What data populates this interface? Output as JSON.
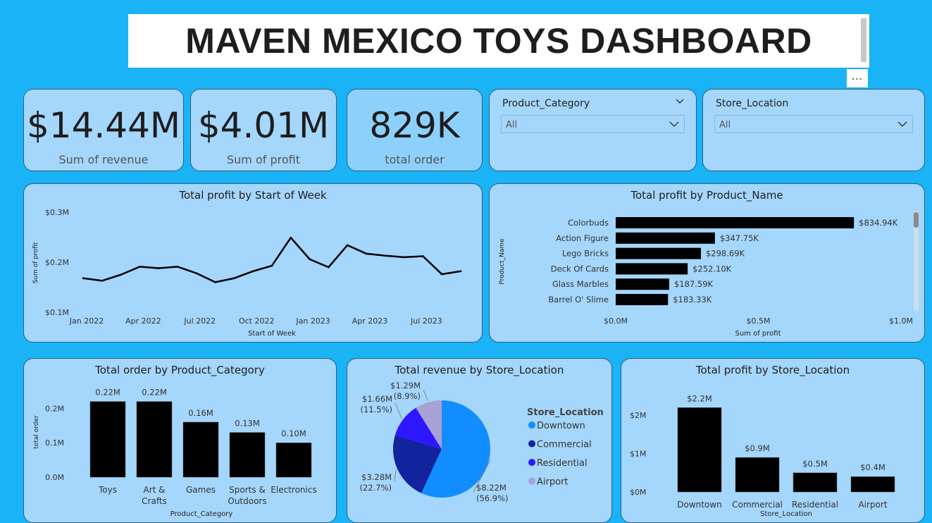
{
  "header": {
    "title": "MAVEN MEXICO TOYS DASHBOARD",
    "more_label": "⋯"
  },
  "kpis": [
    {
      "value": "$14.44M",
      "label": "Sum of revenue"
    },
    {
      "value": "$4.01M",
      "label": "Sum of profit"
    },
    {
      "value": "829K",
      "label": "total order"
    }
  ],
  "slicers": [
    {
      "title": "Product_Category",
      "value": "All"
    },
    {
      "title": "Store_Location",
      "value": "All"
    }
  ],
  "colors": {
    "page_bg": "#1ab3f5",
    "card_bg": "#a5d6fb",
    "bar": "#000000",
    "downtown": "#118dff",
    "commercial": "#12239e",
    "residential": "#2e16ff",
    "airport": "#a7a1d6"
  },
  "chart_data": [
    {
      "type": "line",
      "title": "Total profit by Start of Week",
      "xlabel": "Start of Week",
      "ylabel": "Sum of profit",
      "ylim": [
        0.1,
        0.3
      ],
      "y_ticks": [
        "$0.1M",
        "$0.2M",
        "$0.3M"
      ],
      "x_ticks": [
        "Jan 2022",
        "Apr 2022",
        "Jul 2022",
        "Oct 2022",
        "Jan 2023",
        "Apr 2023",
        "Jul 2023"
      ],
      "x": [
        "2022-01",
        "2022-02",
        "2022-03",
        "2022-04",
        "2022-05",
        "2022-06",
        "2022-07",
        "2022-08",
        "2022-09",
        "2022-10",
        "2022-11",
        "2022-12",
        "2023-01",
        "2023-02",
        "2023-03",
        "2023-04",
        "2023-05",
        "2023-06",
        "2023-07",
        "2023-08",
        "2023-09"
      ],
      "values": [
        0.168,
        0.163,
        0.175,
        0.191,
        0.188,
        0.191,
        0.178,
        0.16,
        0.168,
        0.182,
        0.193,
        0.249,
        0.206,
        0.19,
        0.234,
        0.217,
        0.213,
        0.21,
        0.212,
        0.176,
        0.182
      ],
      "grid": false
    },
    {
      "type": "bar",
      "orientation": "horizontal",
      "title": "Total profit by Product_Name",
      "xlabel": "Sum of profit",
      "ylabel": "Product_Name",
      "xlim": [
        0,
        1.0
      ],
      "x_ticks": [
        "$0.0M",
        "$0.5M",
        "$1.0M"
      ],
      "categories": [
        "Colorbuds",
        "Action Figure",
        "Lego Bricks",
        "Deck Of Cards",
        "Glass Marbles",
        "Barrel O' Slime"
      ],
      "values": [
        834.94,
        347.75,
        298.69,
        252.1,
        187.59,
        183.33
      ],
      "data_labels": [
        "$834.94K",
        "$347.75K",
        "$298.69K",
        "$252.10K",
        "$187.59K",
        "$183.33K"
      ]
    },
    {
      "type": "bar",
      "title": "Total order by Product_Category",
      "xlabel": "Product_Category",
      "ylabel": "total order",
      "ylim": [
        0,
        0.25
      ],
      "y_ticks": [
        "0.0M",
        "0.1M",
        "0.2M"
      ],
      "categories": [
        [
          "Toys"
        ],
        [
          "Art &",
          "Crafts"
        ],
        [
          "Games"
        ],
        [
          "Sports &",
          "Outdoors"
        ],
        [
          "Electronics"
        ]
      ],
      "values": [
        0.22,
        0.22,
        0.16,
        0.13,
        0.1
      ],
      "data_labels": [
        "0.22M",
        "0.22M",
        "0.16M",
        "0.13M",
        "0.10M"
      ]
    },
    {
      "type": "pie",
      "title": "Total revenue by Store_Location",
      "legend_title": "Store_Location",
      "legend": "right",
      "categories": [
        "Downtown",
        "Commercial",
        "Residential",
        "Airport"
      ],
      "values": [
        8.22,
        3.28,
        1.66,
        1.29
      ],
      "percents": [
        56.9,
        22.7,
        11.5,
        8.9
      ],
      "value_labels": [
        "$8.22M",
        "$3.28M",
        "$1.66M",
        "$1.29M"
      ],
      "percent_labels": [
        "(56.9%)",
        "(22.7%)",
        "(11.5%)",
        "(8.9%)"
      ]
    },
    {
      "type": "bar",
      "title": "Total profit by Store_Location",
      "xlabel": "Store_Location",
      "ylim": [
        0,
        2.5
      ],
      "y_ticks": [
        "$0M",
        "$1M",
        "$2M"
      ],
      "categories": [
        "Downtown",
        "Commercial",
        "Residential",
        "Airport"
      ],
      "values": [
        2.2,
        0.9,
        0.5,
        0.4
      ],
      "data_labels": [
        "$2.2M",
        "$0.9M",
        "$0.5M",
        "$0.4M"
      ]
    }
  ]
}
